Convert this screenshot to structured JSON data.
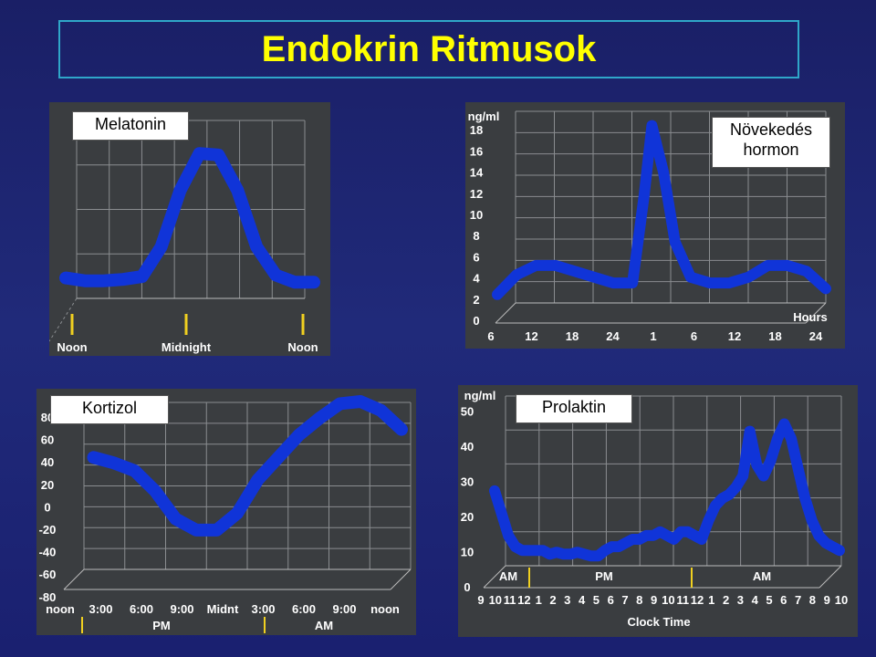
{
  "page": {
    "title": "Endokrin Ritmusok",
    "accent": "#ffff00",
    "curve_color": "#1034d8",
    "panel_color": "#3a3d40"
  },
  "chart_data": [
    {
      "type": "line",
      "label": "Melatonin",
      "xticks": [
        "Noon",
        "Midnight",
        "Noon"
      ],
      "x": [
        0,
        1,
        2,
        3,
        4,
        5,
        6,
        7,
        8,
        9,
        10,
        11,
        12,
        13
      ],
      "values": [
        0.08,
        0.06,
        0.06,
        0.07,
        0.09,
        0.3,
        0.7,
        0.96,
        0.95,
        0.7,
        0.3,
        0.1,
        0.05,
        0.05
      ],
      "grid": true
    },
    {
      "type": "line",
      "label": "Növekedés\nhormon",
      "label_line1": "Növekedés",
      "label_line2": "hormon",
      "ylabel": "ng/ml",
      "yticks": [
        "0",
        "2",
        "4",
        "6",
        "8",
        "10",
        "12",
        "14",
        "16",
        "18"
      ],
      "ylim": [
        0,
        18
      ],
      "xticks": [
        "6",
        "12",
        "18",
        "24",
        "1",
        "6",
        "12",
        "18",
        "24"
      ],
      "xlabel": "Hours",
      "x": [
        0,
        0.5,
        1,
        1.5,
        2,
        2.5,
        3,
        3.5,
        3.8,
        4,
        4.3,
        4.6,
        5,
        5.5,
        6,
        6.5,
        7,
        7.5,
        8,
        8.5
      ],
      "values": [
        1.5,
        3.2,
        4,
        4,
        3.5,
        3,
        2.5,
        2.5,
        10,
        16,
        12,
        6,
        3,
        2.5,
        2.5,
        3,
        4,
        4,
        3.5,
        2
      ],
      "grid": true
    },
    {
      "type": "line",
      "label": "Kortizol",
      "yticks": [
        "80",
        "60",
        "40",
        "20",
        "0",
        "-20",
        "-40",
        "-60",
        "-80"
      ],
      "ylim": [
        -80,
        80
      ],
      "xticks": [
        "noon",
        "3:00",
        "6:00",
        "9:00",
        "Midnt",
        "3:00",
        "6:00",
        "9:00",
        "noon"
      ],
      "xgroups": [
        "PM",
        "AM"
      ],
      "x": [
        0.5,
        1,
        1.5,
        2,
        2.5,
        3,
        3.5,
        4,
        4.5,
        5,
        5.5,
        6,
        6.5,
        7,
        7.5,
        8
      ],
      "values": [
        30,
        25,
        18,
        0,
        -25,
        -35,
        -35,
        -20,
        10,
        30,
        50,
        65,
        78,
        80,
        72,
        55
      ],
      "grid": true
    },
    {
      "type": "line",
      "label": "Prolaktin",
      "ylabel": "ng/ml",
      "yticks": [
        "0",
        "10",
        "20",
        "30",
        "40",
        "50"
      ],
      "ylim": [
        0,
        50
      ],
      "xticks": [
        "9",
        "10",
        "11",
        "12",
        "1",
        "2",
        "3",
        "4",
        "5",
        "6",
        "7",
        "8",
        "9",
        "10",
        "11",
        "12",
        "1",
        "2",
        "3",
        "4",
        "5",
        "6",
        "7",
        "8",
        "9",
        "10"
      ],
      "xgroups": [
        "AM",
        "PM",
        "AM"
      ],
      "xlabel": "Clock Time",
      "x": [
        0,
        0.5,
        1,
        1.5,
        2,
        2.5,
        3,
        3.5,
        4,
        4.5,
        5,
        5.5,
        6,
        6.5,
        7,
        7.5,
        8,
        8.5,
        9,
        9.5,
        10,
        10.5,
        11,
        11.5,
        12,
        12.5,
        13,
        13.5,
        14,
        14.5,
        15,
        15.5,
        16,
        16.5,
        17,
        17.5,
        18,
        18.5,
        19,
        19.5,
        20,
        20.5,
        21,
        21.5,
        22,
        22.5,
        23,
        23.5,
        24,
        24.5,
        25
      ],
      "values": [
        26,
        20,
        14,
        11,
        10,
        10,
        10,
        10,
        9,
        9.5,
        9,
        9,
        9.5,
        9,
        8.5,
        8.5,
        10,
        11,
        11,
        12,
        13,
        13,
        14,
        14,
        15,
        14,
        13,
        15,
        15,
        14,
        13,
        18,
        22,
        24,
        25,
        27,
        30,
        42,
        33,
        30,
        34,
        40,
        44,
        40,
        32,
        24,
        18,
        14,
        12,
        11,
        10
      ],
      "grid": true
    }
  ]
}
